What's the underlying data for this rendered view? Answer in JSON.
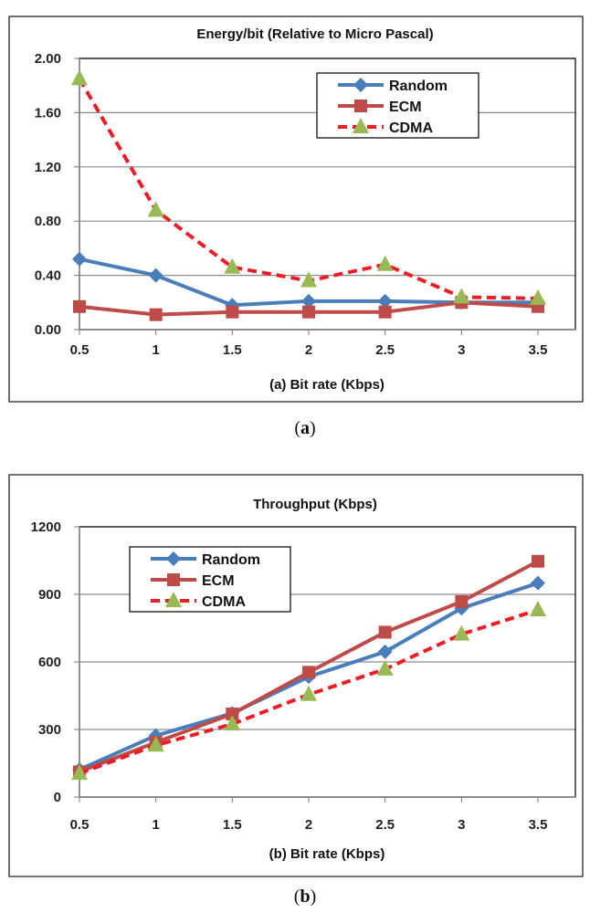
{
  "chart_data": [
    {
      "type": "line",
      "title": "Energy/bit (Relative to Micro Pascal)",
      "xlabel": "(a) Bit rate (Kbps)",
      "ylabel": "",
      "caption_letter": "a",
      "caption_open": "(",
      "caption_close": ")",
      "x": [
        0.5,
        1,
        1.5,
        2,
        2.5,
        3,
        3.5
      ],
      "x_ticks": [
        "0.5",
        "1",
        "1.5",
        "2",
        "2.5",
        "3",
        "3.5"
      ],
      "ylim": [
        0,
        2
      ],
      "y_ticks": [
        "0.00",
        "0.40",
        "0.80",
        "1.20",
        "1.60",
        "2.00"
      ],
      "grid": true,
      "legend_position": "top-right",
      "series": [
        {
          "name": "Random",
          "color": "#4a7ebb",
          "marker": "diamond",
          "dashed": false,
          "values": [
            0.52,
            0.4,
            0.18,
            0.21,
            0.21,
            0.2,
            0.2
          ]
        },
        {
          "name": "ECM",
          "color": "#be4b48",
          "marker": "square",
          "dashed": false,
          "values": [
            0.17,
            0.11,
            0.13,
            0.13,
            0.13,
            0.2,
            0.17
          ]
        },
        {
          "name": "CDMA",
          "color": "#ee1c25",
          "marker_color": "#98b954",
          "marker": "triangle",
          "dashed": true,
          "values": [
            1.85,
            0.88,
            0.46,
            0.36,
            0.48,
            0.24,
            0.23
          ]
        }
      ]
    },
    {
      "type": "line",
      "title": "Throughput (Kbps)",
      "xlabel": "(b) Bit rate (Kbps)",
      "ylabel": "",
      "caption_letter": "b",
      "caption_open": "(",
      "caption_close": ")",
      "x": [
        0.5,
        1,
        1.5,
        2,
        2.5,
        3,
        3.5
      ],
      "x_ticks": [
        "0.5",
        "1",
        "1.5",
        "2",
        "2.5",
        "3",
        "3.5"
      ],
      "ylim": [
        0,
        1200
      ],
      "y_ticks": [
        "0",
        "300",
        "600",
        "900",
        "1200"
      ],
      "grid": true,
      "legend_position": "top-left",
      "series": [
        {
          "name": "Random",
          "color": "#4a7ebb",
          "marker": "diamond",
          "dashed": false,
          "values": [
            122,
            273,
            372,
            534,
            645,
            838,
            950
          ]
        },
        {
          "name": "ECM",
          "color": "#be4b48",
          "marker": "square",
          "dashed": false,
          "values": [
            112,
            243,
            369,
            554,
            732,
            868,
            1047
          ]
        },
        {
          "name": "CDMA",
          "color": "#ee1c25",
          "marker_color": "#98b954",
          "marker": "triangle",
          "dashed": true,
          "values": [
            105,
            230,
            324,
            455,
            568,
            723,
            831
          ]
        }
      ]
    }
  ]
}
